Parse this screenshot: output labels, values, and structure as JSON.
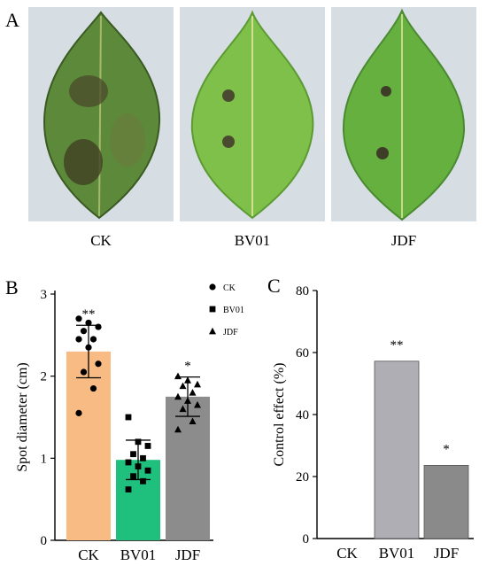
{
  "panels": {
    "a": "A",
    "b": "B",
    "c": "C"
  },
  "photos": [
    {
      "label": "CK"
    },
    {
      "label": "BV01"
    },
    {
      "label": "JDF"
    }
  ],
  "chart_data": [
    {
      "type": "bar",
      "panel": "B",
      "categories": [
        "CK",
        "BV01",
        "JDF"
      ],
      "values": [
        2.3,
        0.98,
        1.75
      ],
      "errors": [
        0.32,
        0.24,
        0.24
      ],
      "significance": [
        "**",
        "",
        "*"
      ],
      "ylabel": "Spot diameter (cm)",
      "ylim": [
        0,
        3
      ],
      "yticks": [
        "0",
        "1",
        "2",
        "3"
      ],
      "colors": [
        "#f8bb84",
        "#1fbf7d",
        "#8c8c8c"
      ],
      "legend": [
        "CK",
        "BV01",
        "JDF"
      ],
      "legend_placement": "top-right",
      "points": [
        [
          2.7,
          2.65,
          2.6,
          2.55,
          2.45,
          2.45,
          2.35,
          2.15,
          2.05,
          1.85,
          1.55
        ],
        [
          1.5,
          1.2,
          1.15,
          1.05,
          1.0,
          0.95,
          0.9,
          0.85,
          0.78,
          0.72,
          0.62
        ],
        [
          2.0,
          1.95,
          1.9,
          1.88,
          1.8,
          1.75,
          1.7,
          1.65,
          1.6,
          1.45,
          1.35
        ]
      ]
    },
    {
      "type": "bar",
      "panel": "C",
      "categories": [
        "CK",
        "BV01",
        "JDF"
      ],
      "values": [
        0,
        57.2,
        23.6
      ],
      "significance": [
        "",
        "**",
        "*"
      ],
      "ylabel": "Control effect (%)",
      "ylim": [
        0,
        80
      ],
      "yticks": [
        "0",
        "20",
        "40",
        "60",
        "80"
      ],
      "colors": [
        "#ffffff",
        "#aeaeb4",
        "#8a8a8a"
      ]
    }
  ]
}
